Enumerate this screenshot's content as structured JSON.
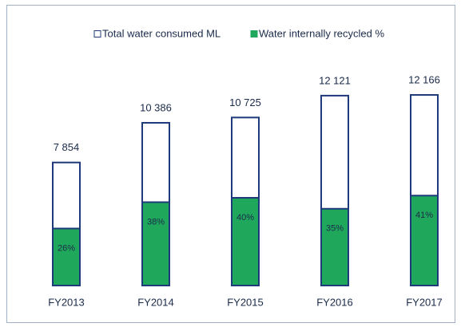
{
  "chart_data": {
    "type": "bar",
    "categories": [
      "FY2013",
      "FY2014",
      "FY2015",
      "FY2016",
      "FY2017"
    ],
    "series": [
      {
        "name": "Total water consumed ML",
        "color": "#ffffff",
        "values": [
          7854,
          10386,
          10725,
          12121,
          12166
        ],
        "value_labels": [
          "7 854",
          "10 386",
          "10 725",
          "12 121",
          "12 166"
        ]
      },
      {
        "name": "Water internally recycled %",
        "color": "#1fa85c",
        "axis": "y2",
        "values": [
          26,
          38,
          40,
          35,
          41
        ],
        "value_labels": [
          "26%",
          "38%",
          "40%",
          "35%",
          "41%"
        ]
      }
    ],
    "ylim": [
      0,
      14000
    ],
    "y2lim": [
      0,
      100
    ],
    "legend": "top"
  }
}
